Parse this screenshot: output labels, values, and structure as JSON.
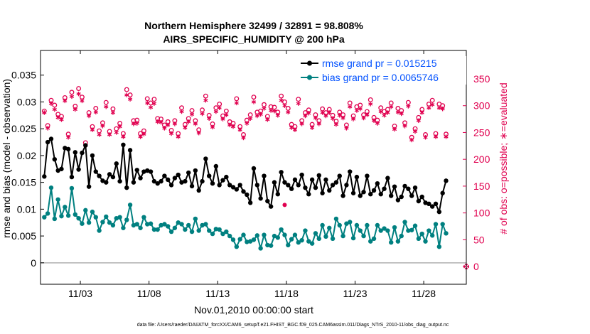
{
  "chart_data": {
    "type": "line",
    "title_line1": "Northern Hemisphere 32499 / 32891 = 98.808%",
    "title_line2": "AIRS_SPECIFIC_HUMIDITY @ 200 hPa",
    "xlabel": "Nov.01,2010 00:00:00 start",
    "ylabel": "rmse and bias (model - observation)",
    "ylabel_right": "# of obs: o=possible; ∗=evaluated",
    "xlim": [
      0.1,
      31.1
    ],
    "ylim_left": [
      -0.004,
      0.0396
    ],
    "ylim_right": [
      -33,
      403
    ],
    "x_ticks": [
      {
        "value": 3,
        "label": "11/03"
      },
      {
        "value": 8,
        "label": "11/08"
      },
      {
        "value": 13,
        "label": "11/13"
      },
      {
        "value": 18,
        "label": "11/18"
      },
      {
        "value": 23,
        "label": "11/23"
      },
      {
        "value": 28,
        "label": "11/28"
      }
    ],
    "y_ticks_left": [
      {
        "value": 0,
        "label": "0"
      },
      {
        "value": 0.005,
        "label": "0.005"
      },
      {
        "value": 0.01,
        "label": "0.01"
      },
      {
        "value": 0.015,
        "label": "0.015"
      },
      {
        "value": 0.02,
        "label": "0.02"
      },
      {
        "value": 0.025,
        "label": "0.025"
      },
      {
        "value": 0.03,
        "label": "0.03"
      },
      {
        "value": 0.035,
        "label": "0.035"
      }
    ],
    "y_ticks_right": [
      {
        "value": 0,
        "label": "0"
      },
      {
        "value": 50,
        "label": "50"
      },
      {
        "value": 100,
        "label": "100"
      },
      {
        "value": 150,
        "label": "150"
      },
      {
        "value": 200,
        "label": "200"
      },
      {
        "value": 250,
        "label": "250"
      },
      {
        "value": 300,
        "label": "300"
      },
      {
        "value": 350,
        "label": "350"
      }
    ],
    "legend": [
      {
        "label": "rmse grand pr = 0.015215",
        "color": "#000000"
      },
      {
        "label": "bias grand pr = 0.0065746",
        "color": "#008080"
      }
    ],
    "colors": {
      "rmse": "#000000",
      "bias": "#008080",
      "obs": "#e0004f",
      "zero_line": "#b0b0b0"
    },
    "footer": "data file: /Users/raeder/DAI/ATM_forcXX/CAM6_setup/f.e21.FHIST_BGC.f09_025.CAM6assim.011/Diags_NTrS_2010-11/obs_diag_output.nc",
    "series": [
      {
        "name": "rmse",
        "x_start": 0.375,
        "x_step": 0.25,
        "values": [
          0.0161,
          0.0225,
          0.0231,
          0.0193,
          0.0172,
          0.0175,
          0.0214,
          0.0212,
          0.016,
          0.0206,
          0.0174,
          0.0205,
          0.0219,
          0.0142,
          0.02,
          0.017,
          0.0162,
          0.0153,
          0.015,
          0.0165,
          0.016,
          0.0185,
          0.0152,
          0.022,
          0.014,
          0.021,
          0.015,
          0.0173,
          0.0158,
          0.017,
          0.0172,
          0.017,
          0.0152,
          0.0148,
          0.0152,
          0.0162,
          0.0155,
          0.0145,
          0.0158,
          0.0164,
          0.015,
          0.0152,
          0.0168,
          0.0143,
          0.0172,
          0.0135,
          0.0152,
          0.0194,
          0.0162,
          0.0148,
          0.018,
          0.0145,
          0.0154,
          0.016,
          0.0145,
          0.0141,
          0.0137,
          0.0145,
          0.0133,
          0.0127,
          0.0112,
          0.0176,
          0.0145,
          0.012,
          0.0162,
          0.0115,
          0.0105,
          0.015,
          0.0128,
          0.0169,
          0.015,
          0.0145,
          0.0138,
          0.0155,
          0.0145,
          0.0164,
          0.014,
          0.0128,
          0.0155,
          0.014,
          0.0163,
          0.013,
          0.0155,
          0.0135,
          0.0145,
          0.015,
          0.0162,
          0.0125,
          0.0145,
          0.017,
          0.013,
          0.016,
          0.0125,
          0.0132,
          0.0162,
          0.0128,
          0.0135,
          0.0148,
          0.0128,
          0.0138,
          0.0158,
          0.0125,
          0.0142,
          0.0117,
          0.0123,
          0.0143,
          0.0138,
          0.0125,
          0.014,
          0.0115,
          0.0123,
          0.0112,
          0.011,
          0.0105,
          0.011,
          0.0095,
          0.013,
          0.0153
        ]
      },
      {
        "name": "bias",
        "x_start": 0.375,
        "x_step": 0.25,
        "values": [
          0.0085,
          0.0092,
          0.014,
          0.0082,
          0.0118,
          0.0087,
          0.0104,
          0.0088,
          0.0139,
          0.009,
          0.0083,
          0.0073,
          0.0098,
          0.0075,
          0.0095,
          0.0085,
          0.006,
          0.0076,
          0.0086,
          0.0075,
          0.007,
          0.0083,
          0.0085,
          0.0065,
          0.008,
          0.0108,
          0.007,
          0.0072,
          0.0065,
          0.0085,
          0.0072,
          0.0073,
          0.0062,
          0.0062,
          0.007,
          0.0072,
          0.0068,
          0.0058,
          0.0065,
          0.0075,
          0.0072,
          0.0062,
          0.007,
          0.0058,
          0.0082,
          0.006,
          0.007,
          0.0072,
          0.006,
          0.0054,
          0.0063,
          0.0062,
          0.0054,
          0.0058,
          0.005,
          0.0043,
          0.003,
          0.0044,
          0.0052,
          0.0039,
          0.004,
          0.0043,
          0.0051,
          0.0027,
          0.0052,
          0.0033,
          0.0032,
          0.005,
          0.0047,
          0.0062,
          0.0052,
          0.0033,
          0.0044,
          0.0052,
          0.0038,
          0.0042,
          0.006,
          0.004,
          0.0036,
          0.0055,
          0.0045,
          0.007,
          0.0049,
          0.0065,
          0.0045,
          0.0082,
          0.007,
          0.005,
          0.0073,
          0.0076,
          0.0046,
          0.007,
          0.006,
          0.005,
          0.007,
          0.004,
          0.0045,
          0.007,
          0.006,
          0.0064,
          0.006,
          0.0038,
          0.0066,
          0.004,
          0.005,
          0.0076,
          0.006,
          0.0061,
          0.0069,
          0.0045,
          0.0054,
          0.004,
          0.006,
          0.0051,
          0.0072,
          0.003,
          0.0072,
          0.0055
        ]
      },
      {
        "name": "obs_possible",
        "axis": "right",
        "x_start": 0.375,
        "x_step": 0.25,
        "values": [
          290,
          263,
          310,
          301,
          284,
          280,
          315,
          247,
          325,
          299,
          332,
          316,
          231,
          287,
          261,
          295,
          253,
          268,
          306,
          252,
          294,
          257,
          267,
          248,
          330,
          320,
          272,
          273,
          248,
          253,
          313,
          305,
          312,
          276,
          275,
          264,
          270,
          254,
          272,
          248,
          296,
          265,
          276,
          291,
          272,
          255,
          292,
          318,
          282,
          266,
          296,
          303,
          281,
          290,
          270,
          267,
          313,
          261,
          246,
          273,
          283,
          316,
          288,
          290,
          302,
          280,
          298,
          297,
          288,
          318,
          307,
          295,
          265,
          261,
          312,
          272,
          287,
          292,
          265,
          283,
          272,
          294,
          287,
          293,
          282,
          271,
          288,
          283,
          264,
          305,
          281,
          298,
          301,
          283,
          289,
          311,
          278,
          273,
          296,
          289,
          293,
          305,
          262,
          295,
          291,
          268,
          306,
          241,
          257,
          278,
          293,
          246,
          303,
          310,
          248,
          303,
          300,
          247
        ]
      },
      {
        "name": "obs_evaluated",
        "axis": "right",
        "x_start": 0.375,
        "x_step": 0.25,
        "values": [
          287,
          258,
          304,
          293,
          278,
          274,
          309,
          241,
          317,
          293,
          322,
          309,
          226,
          281,
          255,
          288,
          246,
          262,
          298,
          246,
          287,
          250,
          261,
          242,
          320,
          312,
          266,
          267,
          242,
          247,
          305,
          297,
          304,
          270,
          269,
          258,
          264,
          248,
          266,
          242,
          289,
          259,
          270,
          284,
          266,
          249,
          285,
          310,
          276,
          260,
          289,
          296,
          275,
          283,
          264,
          261,
          305,
          255,
          240,
          267,
          276,
          307,
          281,
          284,
          295,
          274,
          291,
          290,
          282,
          310,
          300,
          288,
          259,
          255,
          304,
          266,
          281,
          286,
          259,
          277,
          266,
          287,
          281,
          287,
          276,
          265,
          282,
          277,
          258,
          298,
          275,
          291,
          294,
          277,
          283,
          303,
          272,
          267,
          289,
          282,
          287,
          298,
          256,
          288,
          285,
          262,
          299,
          236,
          252,
          272,
          287,
          241,
          296,
          302,
          242,
          296,
          294,
          242
        ]
      }
    ],
    "outlier_markers": [
      {
        "x": 17.875,
        "y": 0.0108
      }
    ]
  }
}
